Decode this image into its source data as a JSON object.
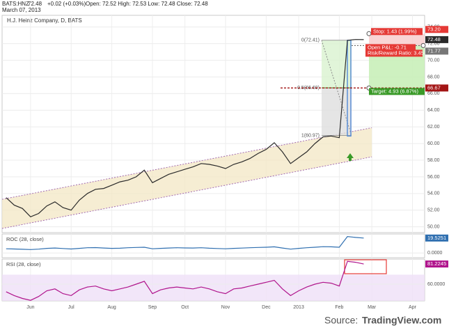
{
  "header": {
    "symbol": "BATS:HNZ",
    "last": "72.48",
    "change": "+0.02 (+0.03%)",
    "ohlc": "Open: 72.52  High: 72.53  Low: 72.48  Close: 72.48",
    "date": "March 07, 2013"
  },
  "source": {
    "prefix": "Source:",
    "site": "TradingView.com"
  },
  "chart_data": [
    {
      "type": "line",
      "title": "H.J. Heinz Company, D, BATS",
      "color": "#2a2a2a",
      "categories": [
        null,
        null,
        null,
        "Jun",
        null,
        null,
        null,
        null,
        "Jul",
        null,
        null,
        null,
        null,
        "Aug",
        null,
        null,
        null,
        null,
        "Sep",
        null,
        null,
        null,
        "Oct",
        null,
        null,
        null,
        null,
        "Nov",
        null,
        null,
        null,
        null,
        "Dec",
        null,
        null,
        null,
        "2013",
        null,
        null,
        null,
        null,
        "Feb",
        null,
        null,
        null,
        "Mar",
        null,
        null,
        null,
        null,
        "Apr",
        null
      ],
      "values": [
        53.5,
        52.6,
        52.2,
        51.2,
        51.6,
        52.5,
        53.0,
        52.3,
        52.0,
        53.2,
        54.0,
        54.5,
        54.6,
        55.0,
        55.4,
        55.6,
        56.0,
        56.8,
        55.3,
        55.8,
        56.3,
        56.6,
        56.9,
        57.2,
        57.6,
        57.5,
        57.3,
        57.0,
        57.5,
        57.8,
        58.2,
        58.8,
        59.3,
        60.1,
        59.0,
        57.6,
        58.3,
        59.0,
        60.0,
        60.8,
        60.9,
        60.7,
        72.4,
        72.5,
        72.48,
        null,
        null,
        null,
        null,
        null,
        null,
        null
      ],
      "ylim": [
        49.3,
        75.4
      ],
      "yticks": [
        {
          "value": 50,
          "label": "50.00"
        },
        {
          "value": 52,
          "label": "52.00"
        },
        {
          "value": 54,
          "label": "54.00"
        },
        {
          "value": 56,
          "label": "56.00"
        },
        {
          "value": 58,
          "label": "58.00"
        },
        {
          "value": 60,
          "label": "60.00"
        },
        {
          "value": 62,
          "label": "62.00"
        },
        {
          "value": 64,
          "label": "64.00"
        },
        {
          "value": 66,
          "label": "66.00"
        },
        {
          "value": 68,
          "label": "68.00"
        },
        {
          "value": 70,
          "label": "70.00"
        },
        {
          "value": 72,
          "label": "72.00"
        },
        {
          "value": 74,
          "label": "74.00"
        }
      ],
      "grid": true,
      "channel": {
        "upper": [
          53.3,
          61.9
        ],
        "lower": [
          49.8,
          58.4
        ]
      },
      "fib_levels": [
        {
          "value": 72.41,
          "label": "0(72.41)"
        },
        {
          "value": 66.69,
          "label": "0.5(66.69)"
        },
        {
          "value": 60.97,
          "label": "1(60.97)"
        }
      ],
      "price_levels": [
        {
          "value": 73.2,
          "label": "73.20",
          "color": "#e53935"
        },
        {
          "value": 71.77,
          "label": "71.77",
          "color": "#777777"
        },
        {
          "value": 66.67,
          "label": "66.67",
          "color": "#a31515"
        }
      ],
      "position": {
        "stop": "Stop: 1.43 (1.99%)",
        "pnl": "Open P&L: -0.71",
        "ratio": "Risk/Reward Ratio: 3.45",
        "target": "Target: 4.93 (6.87%)"
      }
    },
    {
      "type": "line",
      "title": "ROC (28, close)",
      "color": "#2f6fb0",
      "values": [
        5.5,
        5.2,
        4.8,
        4.5,
        5,
        6,
        6.5,
        5.8,
        5.2,
        6,
        6.8,
        7,
        6.5,
        6,
        6.2,
        6.8,
        7.2,
        7.5,
        5.5,
        6,
        6.5,
        6.8,
        6.6,
        6.5,
        6.8,
        6.2,
        5.8,
        5.5,
        6,
        6.4,
        6.8,
        7.2,
        7.5,
        8,
        6.5,
        5,
        6,
        6.8,
        7.5,
        8.2,
        8,
        7.5,
        21.5,
        20.3,
        19.5251,
        null,
        null,
        null,
        null,
        null,
        null,
        null
      ],
      "ylim": [
        -6.2,
        24.8
      ],
      "yticks": [
        {
          "value": 0,
          "label": "0.0000"
        }
      ]
    },
    {
      "type": "line",
      "title": "RSI (28, close)",
      "color": "#b0148c",
      "values": [
        52,
        48,
        45,
        43,
        47,
        53,
        55,
        50,
        48,
        54,
        57,
        58,
        55,
        53,
        55,
        57,
        60,
        63,
        50,
        54,
        56,
        57,
        56,
        55,
        57,
        55,
        52,
        50,
        55,
        56,
        58,
        60,
        62,
        64,
        55,
        48,
        53,
        57,
        60,
        62,
        61,
        58,
        84,
        83,
        81.2245,
        null,
        null,
        null,
        null,
        null,
        null,
        null
      ],
      "ylim": [
        42.4,
        86.4
      ],
      "yticks": [
        {
          "value": 60,
          "label": "60.0000"
        }
      ]
    }
  ]
}
